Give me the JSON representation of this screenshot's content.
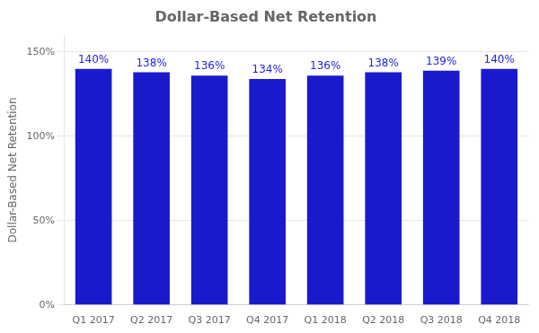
{
  "chart_data": {
    "type": "bar",
    "title": "Dollar-Based Net Retention",
    "ylabel": "Dollar-Based Net Retention",
    "categories": [
      "Q1 2017",
      "Q2 2017",
      "Q3 2017",
      "Q4 2017",
      "Q1 2018",
      "Q2 2018",
      "Q3 2018",
      "Q4 2018"
    ],
    "values": [
      1.4,
      1.38,
      1.36,
      1.34,
      1.36,
      1.38,
      1.39,
      1.4
    ],
    "value_labels": [
      "140%",
      "138%",
      "136%",
      "134%",
      "136%",
      "138%",
      "139%",
      "140%"
    ],
    "color": "#1a1acd",
    "ylim": [
      0,
      1.6
    ],
    "yticks": [
      {
        "value": 0,
        "label": "0%"
      },
      {
        "value": 0.5,
        "label": "50%"
      },
      {
        "value": 1.0,
        "label": "100%"
      },
      {
        "value": 1.5,
        "label": "150%"
      }
    ],
    "grid": true,
    "data_labels": true
  }
}
